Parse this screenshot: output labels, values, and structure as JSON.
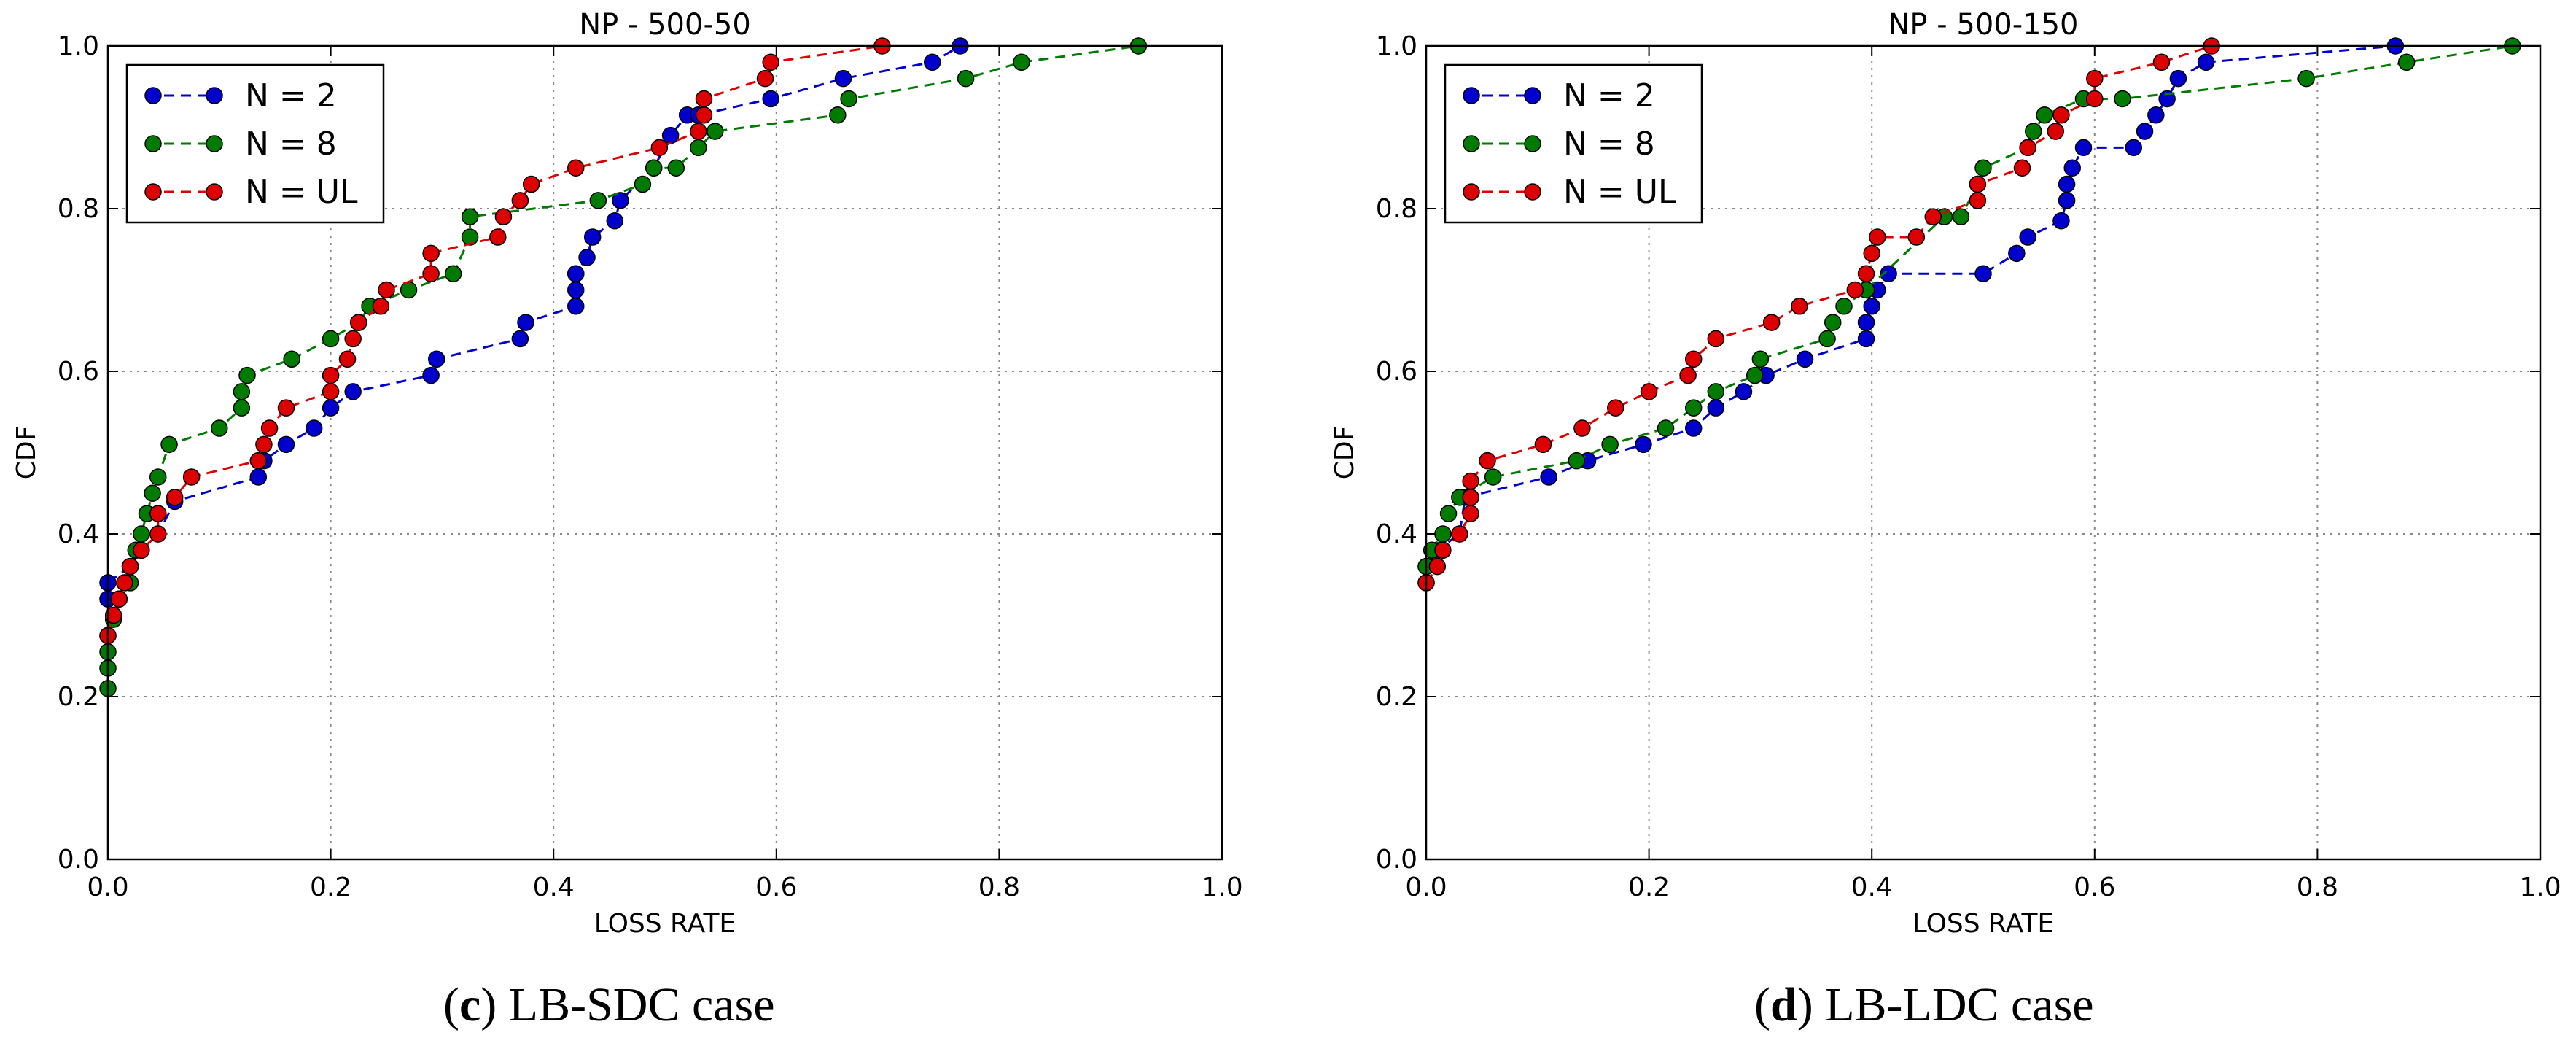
{
  "colors": {
    "blue": "#0000cc",
    "green": "#007a00",
    "red": "#dd0000",
    "grid": "#888888"
  },
  "chart_data": [
    {
      "type": "line",
      "panel": "c",
      "title": "NP - 500-50",
      "xlabel": "LOSS RATE",
      "ylabel": "CDF",
      "xlim": [
        0,
        1.0
      ],
      "ylim": [
        0,
        1.0
      ],
      "xticks": [
        "0.0",
        "0.2",
        "0.4",
        "0.6",
        "0.8",
        "1.0"
      ],
      "yticks": [
        "0.0",
        "0.2",
        "0.4",
        "0.6",
        "0.8",
        "1.0"
      ],
      "grid": true,
      "legend": "top-left",
      "caption_letter": "c",
      "caption_text": " LB-SDC case",
      "series": [
        {
          "name": "N = 2",
          "color": "#0000cc",
          "x": [
            0.0,
            0.0,
            0.02,
            0.03,
            0.045,
            0.06,
            0.135,
            0.14,
            0.16,
            0.185,
            0.2,
            0.22,
            0.29,
            0.295,
            0.37,
            0.375,
            0.42,
            0.42,
            0.42,
            0.42,
            0.43,
            0.435,
            0.455,
            0.46,
            0.49,
            0.505,
            0.52,
            0.53,
            0.595,
            0.66,
            0.74,
            0.765
          ],
          "y": [
            0.32,
            0.34,
            0.36,
            0.38,
            0.4,
            0.44,
            0.47,
            0.49,
            0.51,
            0.53,
            0.555,
            0.575,
            0.595,
            0.615,
            0.64,
            0.66,
            0.68,
            0.7,
            0.72,
            0.72,
            0.74,
            0.765,
            0.785,
            0.81,
            0.85,
            0.89,
            0.915,
            0.915,
            0.935,
            0.96,
            0.98,
            1.0
          ]
        },
        {
          "name": "N = 8",
          "color": "#007a00",
          "x": [
            0.0,
            0.0,
            0.0,
            0.0,
            0.005,
            0.01,
            0.02,
            0.02,
            0.025,
            0.03,
            0.035,
            0.04,
            0.045,
            0.055,
            0.1,
            0.12,
            0.12,
            0.125,
            0.165,
            0.2,
            0.225,
            0.235,
            0.27,
            0.31,
            0.325,
            0.325,
            0.44,
            0.48,
            0.49,
            0.51,
            0.53,
            0.545,
            0.655,
            0.665,
            0.77,
            0.82,
            0.925
          ],
          "y": [
            0.21,
            0.235,
            0.255,
            0.275,
            0.295,
            0.32,
            0.34,
            0.36,
            0.38,
            0.4,
            0.425,
            0.45,
            0.47,
            0.51,
            0.53,
            0.555,
            0.575,
            0.595,
            0.615,
            0.64,
            0.66,
            0.68,
            0.7,
            0.72,
            0.765,
            0.79,
            0.81,
            0.83,
            0.85,
            0.85,
            0.875,
            0.895,
            0.915,
            0.935,
            0.96,
            0.98,
            1.0
          ]
        },
        {
          "name": "N = UL",
          "color": "#dd0000",
          "x": [
            0.0,
            0.005,
            0.01,
            0.015,
            0.02,
            0.03,
            0.045,
            0.045,
            0.06,
            0.075,
            0.135,
            0.14,
            0.145,
            0.16,
            0.2,
            0.2,
            0.215,
            0.22,
            0.225,
            0.245,
            0.25,
            0.29,
            0.29,
            0.35,
            0.355,
            0.37,
            0.38,
            0.42,
            0.495,
            0.53,
            0.535,
            0.535,
            0.59,
            0.595,
            0.695
          ],
          "y": [
            0.275,
            0.3,
            0.32,
            0.34,
            0.36,
            0.38,
            0.4,
            0.425,
            0.445,
            0.47,
            0.49,
            0.51,
            0.53,
            0.555,
            0.575,
            0.595,
            0.615,
            0.64,
            0.66,
            0.68,
            0.7,
            0.72,
            0.745,
            0.765,
            0.79,
            0.81,
            0.83,
            0.85,
            0.875,
            0.895,
            0.915,
            0.935,
            0.96,
            0.98,
            1.0
          ]
        }
      ]
    },
    {
      "type": "line",
      "panel": "d",
      "title": "NP - 500-150",
      "xlabel": "LOSS RATE",
      "ylabel": "CDF",
      "xlim": [
        0,
        1.0
      ],
      "ylim": [
        0,
        1.0
      ],
      "xticks": [
        "0.0",
        "0.2",
        "0.4",
        "0.6",
        "0.8",
        "1.0"
      ],
      "yticks": [
        "0.0",
        "0.2",
        "0.4",
        "0.6",
        "0.8",
        "1.0"
      ],
      "grid": true,
      "legend": "top-left",
      "caption_letter": "d",
      "caption_text": " LB-LDC case",
      "series": [
        {
          "name": "N = 2",
          "color": "#0000cc",
          "x": [
            0.0,
            0.01,
            0.03,
            0.035,
            0.11,
            0.145,
            0.195,
            0.24,
            0.26,
            0.285,
            0.305,
            0.34,
            0.395,
            0.395,
            0.4,
            0.405,
            0.415,
            0.5,
            0.53,
            0.54,
            0.57,
            0.575,
            0.575,
            0.58,
            0.59,
            0.635,
            0.645,
            0.655,
            0.665,
            0.675,
            0.7,
            0.87
          ],
          "y": [
            0.36,
            0.38,
            0.4,
            0.445,
            0.47,
            0.49,
            0.51,
            0.53,
            0.555,
            0.575,
            0.595,
            0.615,
            0.64,
            0.66,
            0.68,
            0.7,
            0.72,
            0.72,
            0.745,
            0.765,
            0.785,
            0.81,
            0.83,
            0.85,
            0.875,
            0.875,
            0.895,
            0.915,
            0.935,
            0.96,
            0.98,
            1.0
          ]
        },
        {
          "name": "N = 8",
          "color": "#007a00",
          "x": [
            0.0,
            0.0,
            0.005,
            0.015,
            0.02,
            0.03,
            0.06,
            0.135,
            0.165,
            0.215,
            0.24,
            0.26,
            0.295,
            0.3,
            0.36,
            0.365,
            0.375,
            0.395,
            0.465,
            0.48,
            0.495,
            0.5,
            0.54,
            0.545,
            0.555,
            0.59,
            0.625,
            0.79,
            0.88,
            0.975
          ],
          "y": [
            0.34,
            0.36,
            0.38,
            0.4,
            0.425,
            0.445,
            0.47,
            0.49,
            0.51,
            0.53,
            0.555,
            0.575,
            0.595,
            0.615,
            0.64,
            0.66,
            0.68,
            0.7,
            0.79,
            0.79,
            0.83,
            0.85,
            0.875,
            0.895,
            0.915,
            0.935,
            0.935,
            0.96,
            0.98,
            1.0
          ]
        },
        {
          "name": "N = UL",
          "color": "#dd0000",
          "x": [
            0.0,
            0.01,
            0.015,
            0.03,
            0.04,
            0.04,
            0.04,
            0.055,
            0.105,
            0.14,
            0.17,
            0.2,
            0.235,
            0.24,
            0.26,
            0.31,
            0.335,
            0.385,
            0.395,
            0.4,
            0.405,
            0.44,
            0.455,
            0.495,
            0.495,
            0.535,
            0.54,
            0.565,
            0.57,
            0.6,
            0.6,
            0.66,
            0.705
          ],
          "y": [
            0.34,
            0.36,
            0.38,
            0.4,
            0.425,
            0.445,
            0.465,
            0.49,
            0.51,
            0.53,
            0.555,
            0.575,
            0.595,
            0.615,
            0.64,
            0.66,
            0.68,
            0.7,
            0.72,
            0.745,
            0.765,
            0.765,
            0.79,
            0.81,
            0.83,
            0.85,
            0.875,
            0.895,
            0.915,
            0.935,
            0.96,
            0.98,
            1.0
          ]
        }
      ]
    }
  ]
}
